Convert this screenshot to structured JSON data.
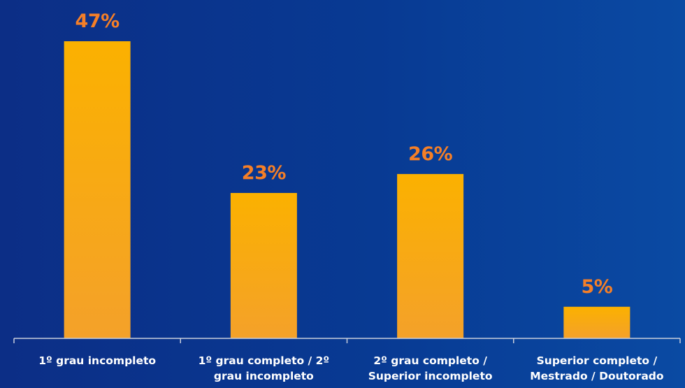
{
  "chart_data": {
    "type": "bar",
    "title": "",
    "xlabel": "",
    "ylabel": "",
    "categories": [
      [
        "1º grau incompleto"
      ],
      [
        "1º grau completo / 2º",
        "grau incompleto"
      ],
      [
        "2º grau completo /",
        "Superior incompleto"
      ],
      [
        "Superior completo /",
        "Mestrado / Doutorado"
      ]
    ],
    "values": [
      47,
      23,
      26,
      5
    ],
    "data_labels": [
      "47%",
      "23%",
      "26%",
      "5%"
    ],
    "ylim": [
      0,
      47
    ],
    "grid": false,
    "legend": "none",
    "colors": {
      "bar_top": "#fbb100",
      "bar_bottom": "#f4a12a",
      "value_label": "#f57f27",
      "axis": "#c9cfdc",
      "category_label": "#ffffff"
    }
  }
}
